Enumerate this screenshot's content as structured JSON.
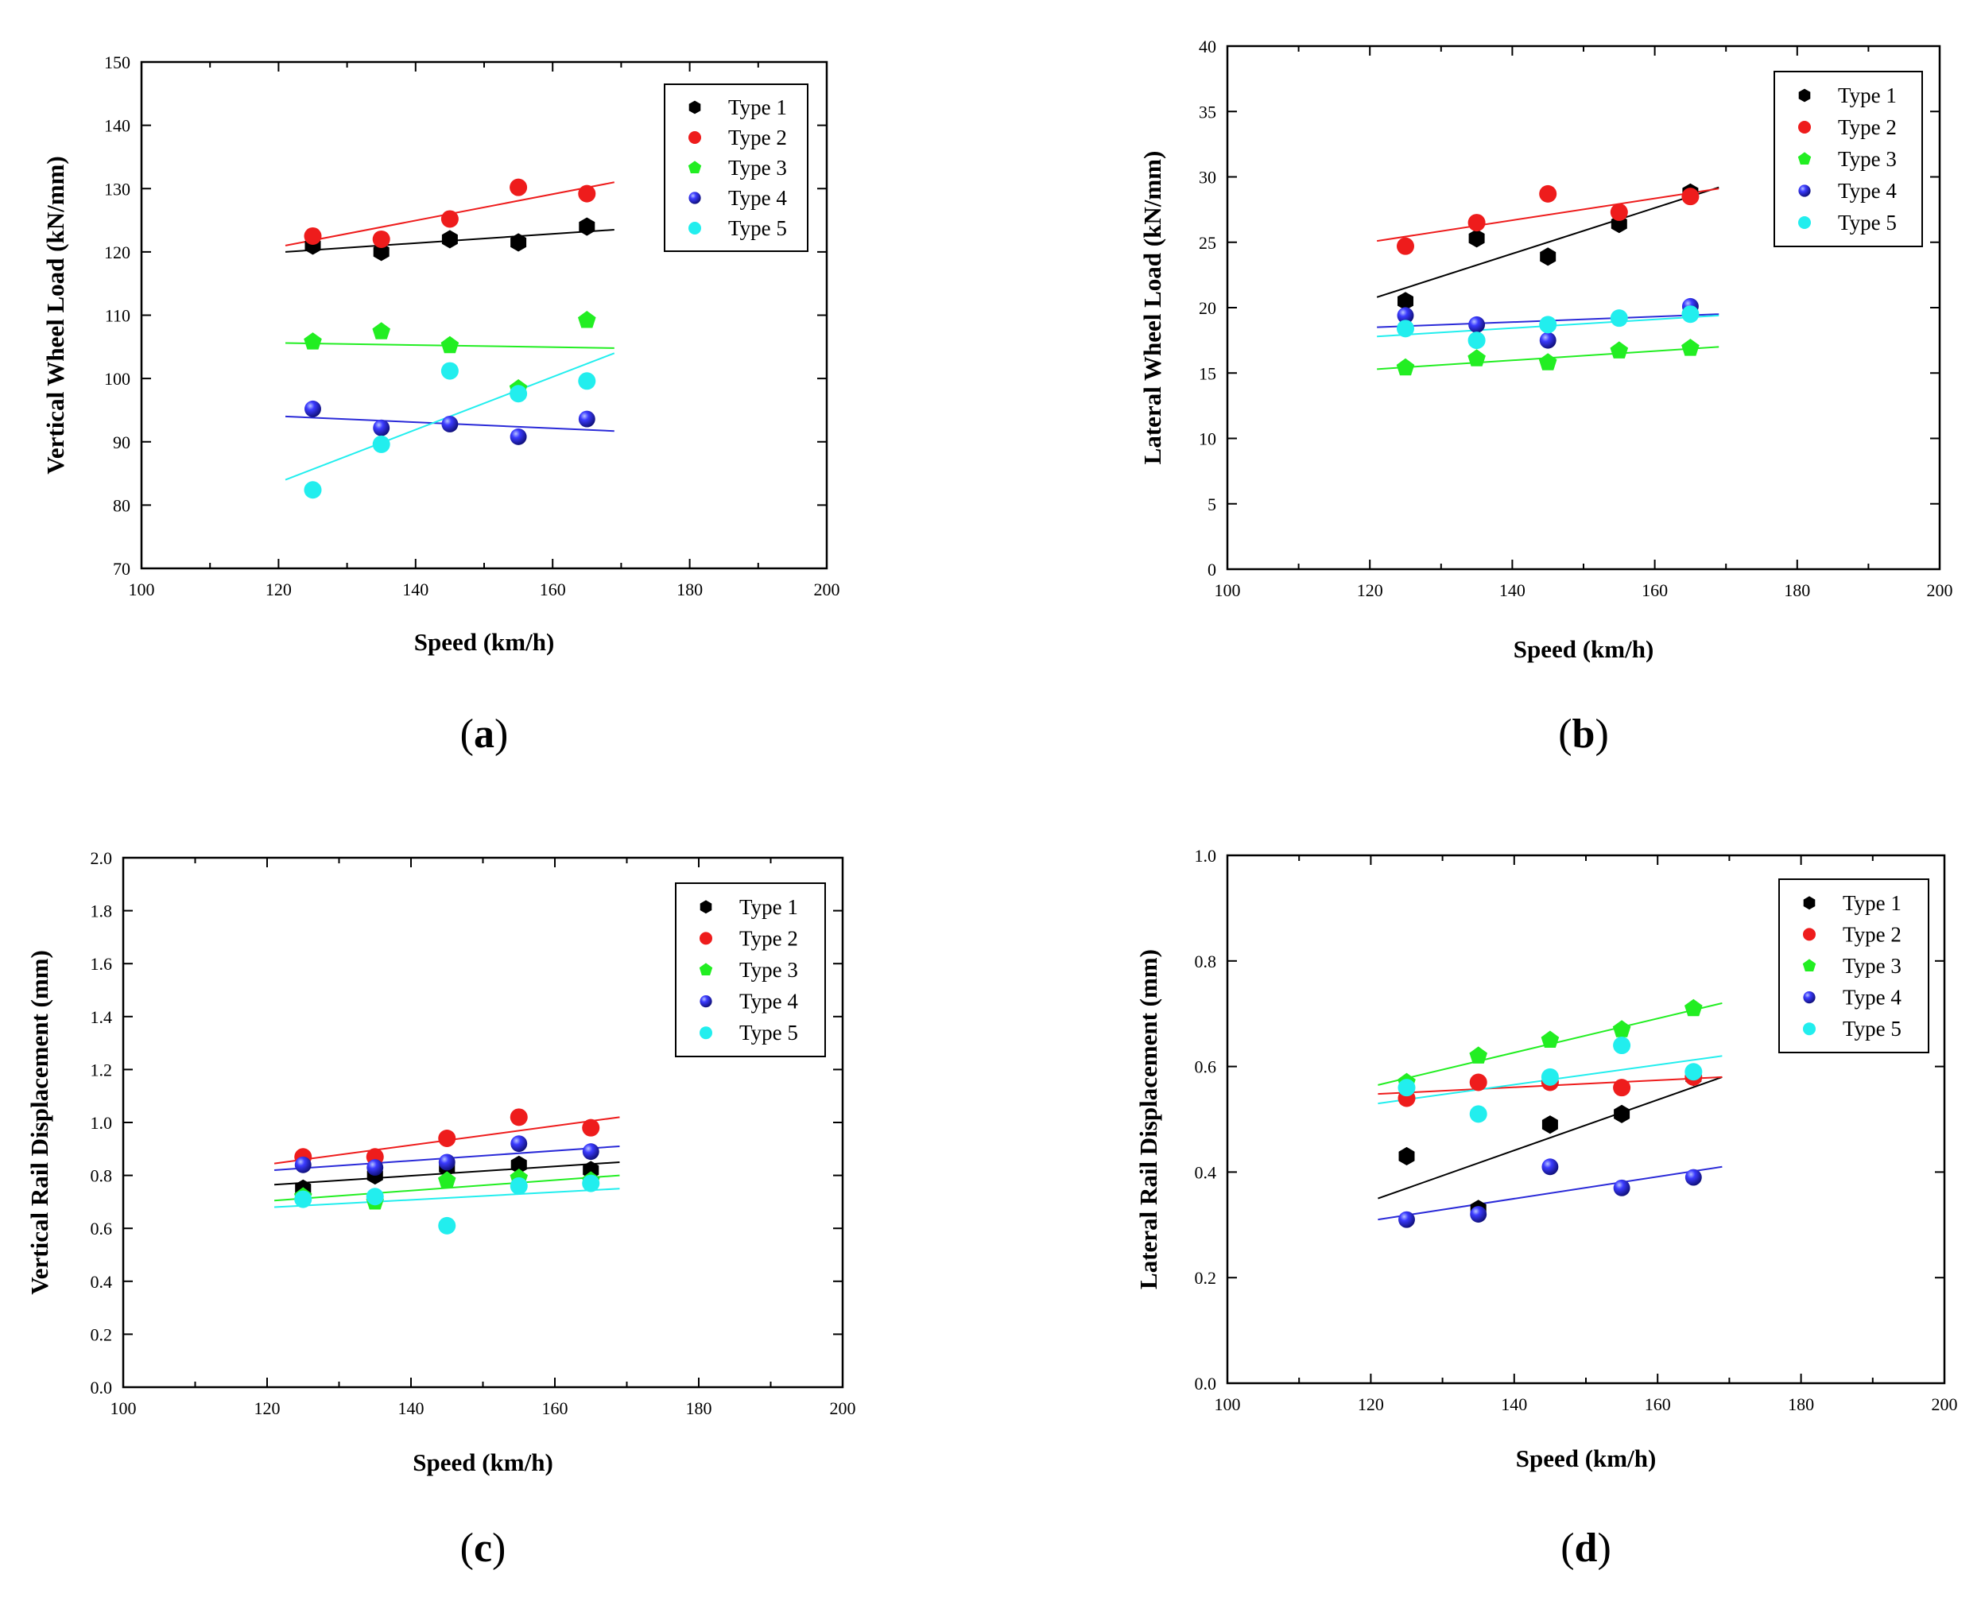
{
  "chart_data": [
    {
      "panel_label": "(a)",
      "label_letter": "a",
      "type": "scatter",
      "xlabel": "Speed (km/h)",
      "ylabel": "Vertical Wheel Load (kN/mm)",
      "xlim": [
        100,
        200
      ],
      "ylim": [
        70,
        150
      ],
      "x_ticks": [
        100,
        120,
        140,
        160,
        180,
        200
      ],
      "y_ticks": [
        70,
        80,
        90,
        100,
        110,
        120,
        130,
        140,
        150
      ],
      "y_decimals": 0,
      "fit_x_range": [
        121,
        169
      ],
      "x": [
        125,
        135,
        145,
        155,
        165
      ],
      "legend_position": "top-right",
      "series": [
        {
          "name": "Type 1",
          "color": "#000000",
          "marker": "hexagon",
          "values": [
            121,
            120,
            122,
            121.5,
            124
          ],
          "fit": [
            120,
            123.5
          ]
        },
        {
          "name": "Type 2",
          "color": "#ee1c1c",
          "marker": "circle",
          "values": [
            122.5,
            122,
            125.2,
            130.2,
            129.2
          ],
          "fit": [
            121,
            131
          ]
        },
        {
          "name": "Type 3",
          "color": "#22ee22",
          "marker": "pentagon",
          "values": [
            105.8,
            107.4,
            105.2,
            98.4,
            109.2
          ],
          "fit": [
            105.6,
            104.8
          ]
        },
        {
          "name": "Type 4",
          "color": "#1a1acc",
          "marker": "sphere",
          "values": [
            95.2,
            92.2,
            92.8,
            90.8,
            93.6
          ],
          "fit": [
            94,
            91.7
          ]
        },
        {
          "name": "Type 5",
          "color": "#22eeee",
          "marker": "circle",
          "values": [
            82.4,
            89.6,
            101.2,
            97.6,
            99.6
          ],
          "fit": [
            84,
            104
          ]
        }
      ]
    },
    {
      "panel_label": "(b)",
      "label_letter": "b",
      "type": "scatter",
      "xlabel": "Speed (km/h)",
      "ylabel": "Lateral Wheel Load (kN/mm)",
      "xlim": [
        100,
        200
      ],
      "ylim": [
        0,
        40
      ],
      "x_ticks": [
        100,
        120,
        140,
        160,
        180,
        200
      ],
      "y_ticks": [
        0,
        5,
        10,
        15,
        20,
        25,
        30,
        35,
        40
      ],
      "y_decimals": 0,
      "fit_x_range": [
        121,
        169
      ],
      "x": [
        125,
        135,
        145,
        155,
        165
      ],
      "legend_position": "top-right",
      "series": [
        {
          "name": "Type 1",
          "color": "#000000",
          "marker": "hexagon",
          "values": [
            20.5,
            25.3,
            23.9,
            26.4,
            28.8
          ],
          "fit": [
            20.8,
            29.2
          ]
        },
        {
          "name": "Type 2",
          "color": "#ee1c1c",
          "marker": "circle",
          "values": [
            24.7,
            26.5,
            28.7,
            27.3,
            28.5
          ],
          "fit": [
            25.1,
            29.1
          ]
        },
        {
          "name": "Type 3",
          "color": "#22ee22",
          "marker": "pentagon",
          "values": [
            15.4,
            16.1,
            15.8,
            16.7,
            16.9
          ],
          "fit": [
            15.3,
            17.0
          ]
        },
        {
          "name": "Type 4",
          "color": "#1a1acc",
          "marker": "sphere",
          "values": [
            19.4,
            18.7,
            17.5,
            19.2,
            20.1
          ],
          "fit": [
            18.5,
            19.5
          ]
        },
        {
          "name": "Type 5",
          "color": "#22eeee",
          "marker": "circle",
          "values": [
            18.4,
            17.5,
            18.7,
            19.2,
            19.5
          ],
          "fit": [
            17.8,
            19.4
          ]
        }
      ]
    },
    {
      "panel_label": "(c)",
      "label_letter": "c",
      "type": "scatter",
      "xlabel": "Speed (km/h)",
      "ylabel": "Vertical Rail Displacement (mm)",
      "xlim": [
        100,
        200
      ],
      "ylim": [
        0.0,
        2.0
      ],
      "x_ticks": [
        100,
        120,
        140,
        160,
        180,
        200
      ],
      "y_ticks": [
        0.0,
        0.2,
        0.4,
        0.6,
        0.8,
        1.0,
        1.2,
        1.4,
        1.6,
        1.8,
        2.0
      ],
      "y_decimals": 1,
      "fit_x_range": [
        121,
        169
      ],
      "x": [
        125,
        135,
        145,
        155,
        165
      ],
      "legend_position": "top-right",
      "series": [
        {
          "name": "Type 1",
          "color": "#000000",
          "marker": "hexagon",
          "values": [
            0.75,
            0.8,
            0.83,
            0.84,
            0.82
          ],
          "fit": [
            0.765,
            0.85
          ]
        },
        {
          "name": "Type 2",
          "color": "#ee1c1c",
          "marker": "circle",
          "values": [
            0.87,
            0.87,
            0.94,
            1.02,
            0.98
          ],
          "fit": [
            0.845,
            1.02
          ]
        },
        {
          "name": "Type 3",
          "color": "#22ee22",
          "marker": "pentagon",
          "values": [
            0.72,
            0.7,
            0.78,
            0.79,
            0.78
          ],
          "fit": [
            0.705,
            0.8
          ]
        },
        {
          "name": "Type 4",
          "color": "#1a1acc",
          "marker": "sphere",
          "values": [
            0.84,
            0.83,
            0.85,
            0.92,
            0.89
          ],
          "fit": [
            0.82,
            0.91
          ]
        },
        {
          "name": "Type 5",
          "color": "#22eeee",
          "marker": "circle",
          "values": [
            0.71,
            0.72,
            0.61,
            0.76,
            0.77
          ],
          "fit": [
            0.68,
            0.75
          ]
        }
      ]
    },
    {
      "panel_label": "(d)",
      "label_letter": "d",
      "type": "scatter",
      "xlabel": "Speed (km/h)",
      "ylabel": "Lateral Rail Displacement (mm)",
      "xlim": [
        100,
        200
      ],
      "ylim": [
        0.0,
        1.0
      ],
      "x_ticks": [
        100,
        120,
        140,
        160,
        180,
        200
      ],
      "y_ticks": [
        0.0,
        0.2,
        0.4,
        0.6,
        0.8,
        1.0
      ],
      "y_decimals": 1,
      "fit_x_range": [
        121,
        169
      ],
      "x": [
        125,
        135,
        145,
        155,
        165
      ],
      "legend_position": "top-right",
      "series": [
        {
          "name": "Type 1",
          "color": "#000000",
          "marker": "hexagon",
          "values": [
            0.43,
            0.33,
            0.49,
            0.51,
            0.58
          ],
          "fit": [
            0.35,
            0.58
          ]
        },
        {
          "name": "Type 2",
          "color": "#ee1c1c",
          "marker": "circle",
          "values": [
            0.54,
            0.57,
            0.57,
            0.56,
            0.58
          ],
          "fit": [
            0.548,
            0.58
          ]
        },
        {
          "name": "Type 3",
          "color": "#22ee22",
          "marker": "pentagon",
          "values": [
            0.57,
            0.62,
            0.65,
            0.67,
            0.71
          ],
          "fit": [
            0.565,
            0.72
          ]
        },
        {
          "name": "Type 4",
          "color": "#1a1acc",
          "marker": "sphere",
          "values": [
            0.31,
            0.32,
            0.41,
            0.37,
            0.39
          ],
          "fit": [
            0.31,
            0.41
          ]
        },
        {
          "name": "Type 5",
          "color": "#22eeee",
          "marker": "circle",
          "values": [
            0.56,
            0.51,
            0.58,
            0.64,
            0.59
          ],
          "fit": [
            0.53,
            0.62
          ]
        }
      ]
    }
  ]
}
